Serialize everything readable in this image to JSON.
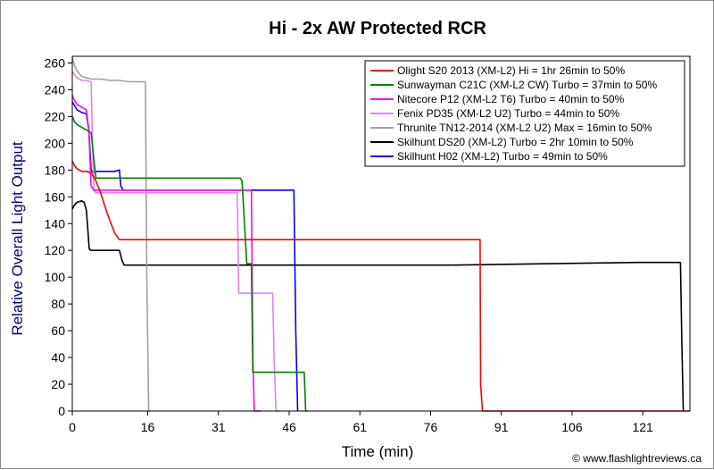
{
  "chart_data": {
    "type": "line",
    "title": "Hi - 2x AW Protected RCR",
    "xlabel": "Time (min)",
    "ylabel": "Relative Overall Light Output",
    "xlim": [
      0,
      131
    ],
    "ylim": [
      0,
      265
    ],
    "xticks": [
      0,
      16,
      31,
      46,
      61,
      76,
      91,
      106,
      121
    ],
    "yticks": [
      0,
      20,
      40,
      60,
      80,
      100,
      120,
      140,
      160,
      180,
      200,
      220,
      240,
      260
    ],
    "grid": false,
    "legend_position": "top-right",
    "credit": "© www.flashlightreviews.ca",
    "series": [
      {
        "name": "Olight S20 2013 (XM-L2) Hi = 1hr 26min to 50%",
        "color": "#ff0000",
        "x": [
          0,
          0.5,
          1,
          2,
          3,
          4,
          5,
          6,
          7,
          8,
          9,
          10,
          20,
          40,
          60,
          80,
          86.5,
          86.6,
          87,
          88,
          131
        ],
        "y": [
          187,
          183,
          181,
          179,
          179,
          178,
          172,
          163,
          152,
          142,
          133,
          128,
          128,
          128,
          128,
          128,
          128,
          20,
          0,
          0,
          0
        ]
      },
      {
        "name": "Sunwayman C21C (XM-L2 CW) Turbo = 37min to 50%",
        "color": "#008000",
        "x": [
          0,
          0.5,
          1,
          2,
          3,
          4,
          5,
          10,
          20,
          30,
          35,
          35.6,
          36,
          37,
          38,
          38.3,
          40,
          45,
          48,
          48.5,
          49.2,
          49.5,
          50
        ],
        "y": [
          220,
          216,
          214,
          212,
          210,
          208,
          174,
          174,
          174,
          174,
          174,
          174,
          172,
          110,
          110,
          29,
          29,
          29,
          29,
          29,
          29,
          0,
          0
        ]
      },
      {
        "name": "Nitecore P12 (XM-L2 T6) Turbo = 40min to 50%",
        "color": "#ff00ff",
        "x": [
          0,
          0.3,
          1,
          2,
          3,
          3.5,
          4,
          4.6,
          5,
          10,
          20,
          30,
          37,
          38,
          38.3,
          38.6,
          40
        ],
        "y": [
          236,
          233,
          229,
          227,
          225,
          210,
          168,
          165,
          165,
          165,
          165,
          165,
          165,
          165,
          40,
          0,
          0
        ]
      },
      {
        "name": "Fenix PD35 (XM-L2 U2) Turbo = 44min to 50%",
        "color": "#e080ff",
        "x": [
          0,
          0.5,
          1,
          2,
          3,
          4,
          4.3,
          4.6,
          5,
          10,
          20,
          30,
          33,
          35,
          35.3,
          36,
          40,
          42.5,
          42.8,
          43.2,
          44
        ],
        "y": [
          254,
          251,
          249,
          247,
          247,
          246,
          200,
          165,
          163,
          163,
          163,
          163,
          163,
          163,
          88,
          88,
          88,
          88,
          40,
          0,
          0
        ]
      },
      {
        "name": "Thrunite TN12-2014 (XM-L2 U2) Max = 16min to 50%",
        "color": "#a0a0a0",
        "x": [
          0,
          0.5,
          1,
          2,
          3,
          4,
          6,
          8,
          10,
          12,
          14,
          15.5,
          15.8,
          16.2,
          16.5
        ],
        "y": [
          264,
          258,
          254,
          250,
          249,
          248,
          248,
          247,
          247,
          246,
          246,
          246,
          100,
          0,
          0
        ]
      },
      {
        "name": "Skilhunt DS20 (XM-L2) Turbo = 2hr 10min to 50%",
        "color": "#000000",
        "x": [
          0,
          0.5,
          1,
          2,
          2.5,
          3,
          3.6,
          4,
          5,
          10,
          10.5,
          11,
          20,
          40,
          60,
          80,
          100,
          120,
          129,
          129.3,
          129.6
        ],
        "y": [
          151,
          154,
          156,
          157,
          156,
          150,
          121,
          120,
          120,
          120,
          113,
          109,
          109,
          109,
          109,
          109,
          110,
          111,
          111,
          50,
          0
        ]
      },
      {
        "name": "Skilhunt H02 (XM-L2) Turbo = 49min to 50%",
        "color": "#0000ff",
        "x": [
          0,
          0.5,
          1,
          2,
          3,
          3.5,
          4,
          4.5,
          5,
          9,
          10,
          10.3,
          10.8,
          20,
          30,
          40,
          46.5,
          47,
          47.4,
          47.8
        ],
        "y": [
          231,
          228,
          225,
          223,
          222,
          210,
          180,
          178,
          179,
          179,
          180,
          168,
          165,
          165,
          165,
          165,
          165,
          165,
          60,
          0
        ]
      }
    ]
  }
}
